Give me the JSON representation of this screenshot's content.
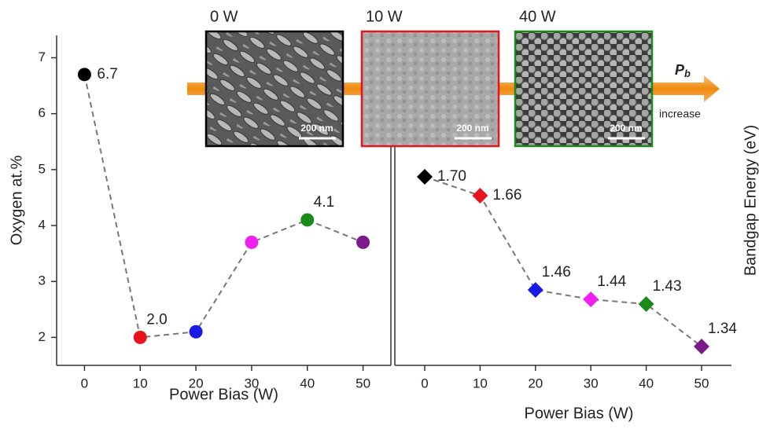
{
  "chart_data": [
    {
      "type": "line",
      "ylabel": "Oxygen at.%",
      "xlabel": "Power Bias (W)",
      "marker": "circle",
      "x": [
        0,
        10,
        20,
        30,
        40,
        50
      ],
      "values": [
        6.7,
        2.0,
        2.1,
        3.7,
        4.1,
        3.7
      ],
      "value_labels": [
        "6.7",
        "2.0",
        null,
        null,
        "4.1",
        null
      ],
      "colors": [
        "#000000",
        "#e8141c",
        "#1a1ae6",
        "#f020f0",
        "#1a8a1a",
        "#7b1a8a"
      ],
      "xlim": [
        -5,
        55
      ],
      "ylim": [
        1.5,
        7.4
      ],
      "xticks": [
        0,
        10,
        20,
        30,
        40,
        50
      ],
      "yticks": [
        2,
        3,
        4,
        5,
        6,
        7
      ]
    },
    {
      "type": "line",
      "ylabel": "Bandgap Energy (eV)",
      "xlabel": "Power Bias (W)",
      "marker": "diamond",
      "x": [
        0,
        10,
        20,
        30,
        40,
        50
      ],
      "values": [
        1.7,
        1.66,
        1.46,
        1.44,
        1.43,
        1.34
      ],
      "value_labels": [
        "1.70",
        "1.66",
        "1.46",
        "1.44",
        "1.43",
        "1.34"
      ],
      "colors": [
        "#000000",
        "#e8141c",
        "#1a1ae6",
        "#f020f0",
        "#1a8a1a",
        "#7b1a8a"
      ],
      "xlim": [
        -5.4,
        55.4
      ],
      "ylim": [
        1.3,
        2.0
      ],
      "xticks": [
        0,
        10,
        20,
        30,
        40,
        50
      ]
    }
  ],
  "insets": [
    {
      "label": "0 W",
      "color": "#000000",
      "scale": "200 nm"
    },
    {
      "label": "10 W",
      "color": "#e8141c",
      "scale": "200 nm"
    },
    {
      "label": "40 W",
      "color": "#1a8a1a",
      "scale": "200 nm"
    }
  ],
  "arrow": {
    "symbol": "P",
    "subscript": "b",
    "text": "increase"
  }
}
